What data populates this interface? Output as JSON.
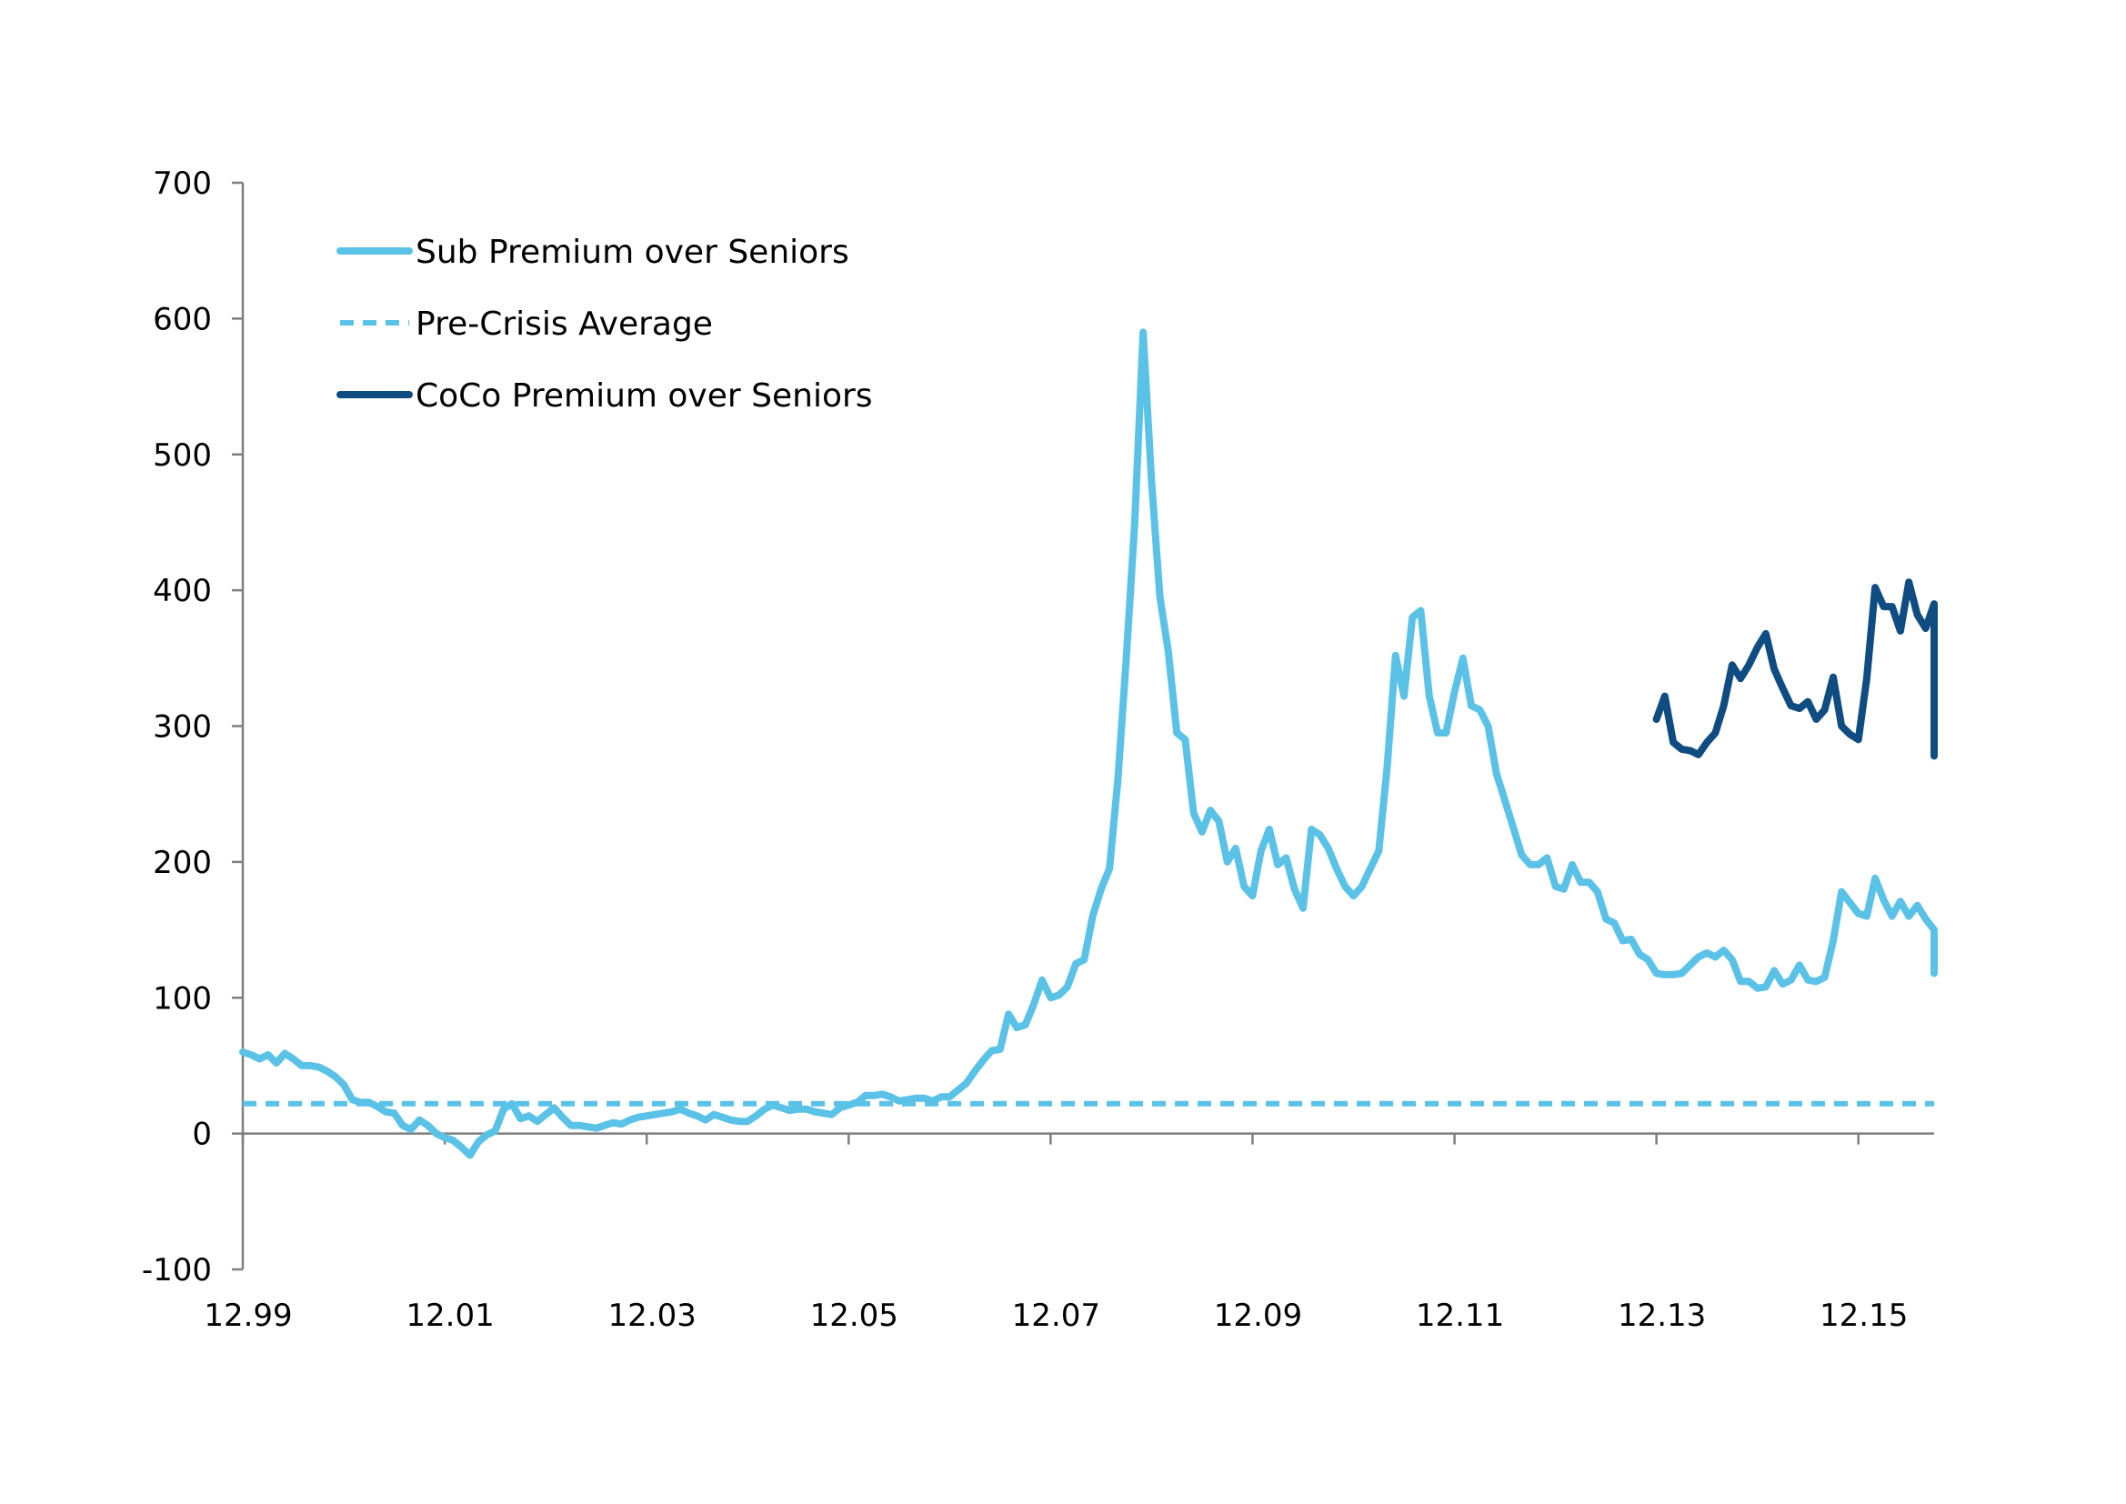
{
  "chart_data": {
    "type": "line",
    "title": "",
    "xlabel": "",
    "ylabel": "",
    "ylim": [
      -100,
      700
    ],
    "yticks": [
      "700",
      "600",
      "500",
      "400",
      "300",
      "200",
      "100",
      "0",
      "-100"
    ],
    "xlim": [
      1999.917,
      2016.667
    ],
    "xticks": [
      {
        "label": "12.99",
        "x": 1999.917
      },
      {
        "label": "12.01",
        "x": 2001.917
      },
      {
        "label": "12.03",
        "x": 2003.917
      },
      {
        "label": "12.05",
        "x": 2005.917
      },
      {
        "label": "12.07",
        "x": 2007.917
      },
      {
        "label": "12.09",
        "x": 2009.917
      },
      {
        "label": "12.11",
        "x": 2011.917
      },
      {
        "label": "12.13",
        "x": 2013.917
      },
      {
        "label": "12.15",
        "x": 2015.917
      }
    ],
    "grid": false,
    "legend_position": "top-left",
    "series": [
      {
        "name": "Sub Premium over Seniors",
        "color": "#5bc2e7",
        "style": "solid",
        "points": [
          [
            1999.917,
            60
          ],
          [
            2000.0,
            58
          ],
          [
            2000.083,
            55
          ],
          [
            2000.167,
            58
          ],
          [
            2000.25,
            52
          ],
          [
            2000.333,
            59
          ],
          [
            2000.417,
            55
          ],
          [
            2000.5,
            50
          ],
          [
            2000.583,
            50
          ],
          [
            2000.667,
            49
          ],
          [
            2000.75,
            46
          ],
          [
            2000.833,
            42
          ],
          [
            2000.917,
            36
          ],
          [
            2001.0,
            25
          ],
          [
            2001.083,
            23
          ],
          [
            2001.167,
            23
          ],
          [
            2001.25,
            20
          ],
          [
            2001.333,
            16
          ],
          [
            2001.417,
            15
          ],
          [
            2001.5,
            6
          ],
          [
            2001.583,
            3
          ],
          [
            2001.667,
            10
          ],
          [
            2001.75,
            6
          ],
          [
            2001.833,
            0
          ],
          [
            2001.917,
            -3
          ],
          [
            2002.0,
            -5
          ],
          [
            2002.083,
            -10
          ],
          [
            2002.167,
            -16
          ],
          [
            2002.25,
            -6
          ],
          [
            2002.333,
            -1
          ],
          [
            2002.417,
            2
          ],
          [
            2002.5,
            18
          ],
          [
            2002.583,
            22
          ],
          [
            2002.667,
            11
          ],
          [
            2002.75,
            13
          ],
          [
            2002.833,
            9
          ],
          [
            2002.917,
            14
          ],
          [
            2003.0,
            19
          ],
          [
            2003.083,
            12
          ],
          [
            2003.167,
            6
          ],
          [
            2003.25,
            6
          ],
          [
            2003.333,
            5
          ],
          [
            2003.417,
            4
          ],
          [
            2003.5,
            6
          ],
          [
            2003.583,
            8
          ],
          [
            2003.667,
            7
          ],
          [
            2003.75,
            10
          ],
          [
            2003.833,
            12
          ],
          [
            2003.917,
            13
          ],
          [
            2004.0,
            14
          ],
          [
            2004.083,
            15
          ],
          [
            2004.167,
            16
          ],
          [
            2004.25,
            18
          ],
          [
            2004.333,
            15
          ],
          [
            2004.417,
            13
          ],
          [
            2004.5,
            10
          ],
          [
            2004.583,
            14
          ],
          [
            2004.667,
            12
          ],
          [
            2004.75,
            10
          ],
          [
            2004.833,
            9
          ],
          [
            2004.917,
            9
          ],
          [
            2005.0,
            13
          ],
          [
            2005.083,
            18
          ],
          [
            2005.167,
            21
          ],
          [
            2005.25,
            19
          ],
          [
            2005.333,
            17
          ],
          [
            2005.417,
            18
          ],
          [
            2005.5,
            18
          ],
          [
            2005.583,
            16
          ],
          [
            2005.667,
            15
          ],
          [
            2005.75,
            14
          ],
          [
            2005.833,
            19
          ],
          [
            2005.917,
            21
          ],
          [
            2006.0,
            23
          ],
          [
            2006.083,
            28
          ],
          [
            2006.167,
            28
          ],
          [
            2006.25,
            29
          ],
          [
            2006.333,
            27
          ],
          [
            2006.417,
            24
          ],
          [
            2006.5,
            25
          ],
          [
            2006.583,
            26
          ],
          [
            2006.667,
            26
          ],
          [
            2006.75,
            24
          ],
          [
            2006.833,
            27
          ],
          [
            2006.917,
            27
          ],
          [
            2007.0,
            32
          ],
          [
            2007.083,
            37
          ],
          [
            2007.167,
            46
          ],
          [
            2007.25,
            54
          ],
          [
            2007.333,
            61
          ],
          [
            2007.417,
            62
          ],
          [
            2007.5,
            88
          ],
          [
            2007.583,
            78
          ],
          [
            2007.667,
            80
          ],
          [
            2007.75,
            95
          ],
          [
            2007.833,
            113
          ],
          [
            2007.917,
            100
          ],
          [
            2008.0,
            102
          ],
          [
            2008.083,
            108
          ],
          [
            2008.167,
            125
          ],
          [
            2008.25,
            128
          ],
          [
            2008.333,
            160
          ],
          [
            2008.417,
            180
          ],
          [
            2008.5,
            195
          ],
          [
            2008.583,
            260
          ],
          [
            2008.667,
            350
          ],
          [
            2008.75,
            450
          ],
          [
            2008.833,
            590
          ],
          [
            2008.917,
            480
          ],
          [
            2009.0,
            395
          ],
          [
            2009.083,
            355
          ],
          [
            2009.167,
            295
          ],
          [
            2009.25,
            290
          ],
          [
            2009.333,
            236
          ],
          [
            2009.417,
            222
          ],
          [
            2009.5,
            238
          ],
          [
            2009.583,
            230
          ],
          [
            2009.667,
            200
          ],
          [
            2009.75,
            210
          ],
          [
            2009.833,
            182
          ],
          [
            2009.917,
            175
          ],
          [
            2010.0,
            208
          ],
          [
            2010.083,
            224
          ],
          [
            2010.167,
            198
          ],
          [
            2010.25,
            203
          ],
          [
            2010.333,
            180
          ],
          [
            2010.417,
            166
          ],
          [
            2010.5,
            224
          ],
          [
            2010.583,
            220
          ],
          [
            2010.667,
            210
          ],
          [
            2010.75,
            195
          ],
          [
            2010.833,
            182
          ],
          [
            2010.917,
            175
          ],
          [
            2011.0,
            182
          ],
          [
            2011.083,
            195
          ],
          [
            2011.167,
            208
          ],
          [
            2011.25,
            270
          ],
          [
            2011.333,
            352
          ],
          [
            2011.417,
            322
          ],
          [
            2011.5,
            380
          ],
          [
            2011.583,
            385
          ],
          [
            2011.667,
            322
          ],
          [
            2011.75,
            295
          ],
          [
            2011.833,
            295
          ],
          [
            2011.917,
            325
          ],
          [
            2012.0,
            350
          ],
          [
            2012.083,
            315
          ],
          [
            2012.167,
            312
          ],
          [
            2012.25,
            300
          ],
          [
            2012.333,
            265
          ],
          [
            2012.417,
            245
          ],
          [
            2012.5,
            225
          ],
          [
            2012.583,
            205
          ],
          [
            2012.667,
            198
          ],
          [
            2012.75,
            198
          ],
          [
            2012.833,
            203
          ],
          [
            2012.917,
            182
          ],
          [
            2013.0,
            180
          ],
          [
            2013.083,
            198
          ],
          [
            2013.167,
            185
          ],
          [
            2013.25,
            185
          ],
          [
            2013.333,
            178
          ],
          [
            2013.417,
            158
          ],
          [
            2013.5,
            155
          ],
          [
            2013.583,
            142
          ],
          [
            2013.667,
            143
          ],
          [
            2013.75,
            132
          ],
          [
            2013.833,
            128
          ],
          [
            2013.917,
            118
          ],
          [
            2014.0,
            117
          ],
          [
            2014.083,
            117
          ],
          [
            2014.167,
            118
          ],
          [
            2014.25,
            124
          ],
          [
            2014.333,
            130
          ],
          [
            2014.417,
            133
          ],
          [
            2014.5,
            130
          ],
          [
            2014.583,
            135
          ],
          [
            2014.667,
            128
          ],
          [
            2014.75,
            112
          ],
          [
            2014.833,
            112
          ],
          [
            2014.917,
            107
          ],
          [
            2015.0,
            108
          ],
          [
            2015.083,
            120
          ],
          [
            2015.167,
            110
          ],
          [
            2015.25,
            113
          ],
          [
            2015.333,
            124
          ],
          [
            2015.417,
            113
          ],
          [
            2015.5,
            112
          ],
          [
            2015.583,
            115
          ],
          [
            2015.667,
            142
          ],
          [
            2015.75,
            178
          ],
          [
            2015.833,
            170
          ],
          [
            2015.917,
            162
          ],
          [
            2016.0,
            160
          ],
          [
            2016.083,
            188
          ],
          [
            2016.167,
            172
          ],
          [
            2016.25,
            160
          ],
          [
            2016.333,
            171
          ],
          [
            2016.417,
            160
          ],
          [
            2016.5,
            168
          ],
          [
            2016.583,
            158
          ],
          [
            2016.667,
            150
          ],
          [
            2016.75,
            147
          ],
          [
            2016.833,
            136
          ],
          [
            2016.917,
            126
          ],
          [
            2017.0,
            118
          ]
        ]
      },
      {
        "name": "Pre-Crisis Average",
        "color": "#5bc2e7",
        "style": "dashed",
        "points": [
          [
            1999.917,
            22
          ],
          [
            2017.0,
            22
          ]
        ]
      },
      {
        "name": "CoCo Premium over Seniors",
        "color": "#0f4c81",
        "style": "solid",
        "points": [
          [
            2013.917,
            305
          ],
          [
            2014.0,
            322
          ],
          [
            2014.083,
            288
          ],
          [
            2014.167,
            283
          ],
          [
            2014.25,
            282
          ],
          [
            2014.333,
            279
          ],
          [
            2014.417,
            288
          ],
          [
            2014.5,
            295
          ],
          [
            2014.583,
            315
          ],
          [
            2014.667,
            345
          ],
          [
            2014.75,
            335
          ],
          [
            2014.833,
            345
          ],
          [
            2014.917,
            358
          ],
          [
            2015.0,
            368
          ],
          [
            2015.083,
            342
          ],
          [
            2015.167,
            328
          ],
          [
            2015.25,
            315
          ],
          [
            2015.333,
            313
          ],
          [
            2015.417,
            318
          ],
          [
            2015.5,
            305
          ],
          [
            2015.583,
            312
          ],
          [
            2015.667,
            336
          ],
          [
            2015.75,
            300
          ],
          [
            2015.833,
            294
          ],
          [
            2015.917,
            290
          ],
          [
            2016.0,
            335
          ],
          [
            2016.083,
            402
          ],
          [
            2016.167,
            388
          ],
          [
            2016.25,
            388
          ],
          [
            2016.333,
            370
          ],
          [
            2016.417,
            406
          ],
          [
            2016.5,
            382
          ],
          [
            2016.583,
            372
          ],
          [
            2016.667,
            390
          ],
          [
            2016.75,
            366
          ],
          [
            2016.833,
            366
          ],
          [
            2016.917,
            338
          ],
          [
            2017.0,
            330
          ],
          [
            2017.083,
            306
          ],
          [
            2017.167,
            300
          ],
          [
            2017.25,
            278
          ],
          [
            2017.333,
            281
          ]
        ]
      }
    ]
  }
}
